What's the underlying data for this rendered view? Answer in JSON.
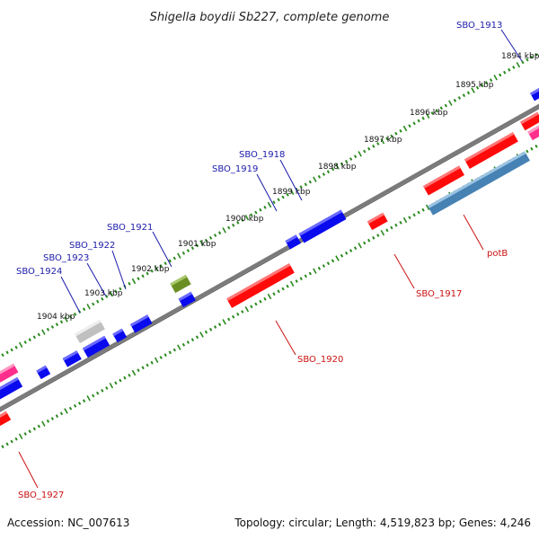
{
  "title": "Shigella boydii Sb227, complete genome",
  "footer": {
    "accession": "Accession: NC_007613",
    "summary": "Topology: circular; Length: 4,519,823 bp; Genes: 4,246"
  },
  "colors": {
    "backbone": "#7a7a7a",
    "tick": "#2a8a1e",
    "label_blue": "#1a1aaa",
    "label_red": "#cc1111",
    "gene_red": "#ff0a0a",
    "gene_blue": "#0a0aee",
    "gene_steel": "#4682b4",
    "gene_pink": "#ff2e8c",
    "gene_olive": "#6b8e23",
    "gene_gray": "#c0c0c0"
  },
  "kbp_ticks": [
    "1894 kbp",
    "1895 kbp",
    "1896 kbp",
    "1897 kbp",
    "1898 kbp",
    "1899 kbp",
    "1900 kbp",
    "1901 kbp",
    "1902 kbp",
    "1903 kbp",
    "1904 kbp"
  ],
  "labels_top": [
    "SBO_1913",
    "SBO_1918",
    "SBO_1919",
    "SBO_1921",
    "SBO_1922",
    "SBO_1923",
    "SBO_1924"
  ],
  "labels_bottom": [
    "potB",
    "SBO_1917",
    "SBO_1920",
    "SBO_1927"
  ],
  "genes": [
    {
      "name": "gene-red-top-right-1",
      "color": "red"
    },
    {
      "name": "gene-red-top-right-2",
      "color": "red"
    },
    {
      "name": "gene-red-potB-1",
      "color": "red"
    },
    {
      "name": "gene-red-potB-2",
      "color": "red"
    },
    {
      "name": "gene-steel",
      "color": "steel"
    },
    {
      "name": "gene-pink-right",
      "color": "pink"
    },
    {
      "name": "gene-blue-right",
      "color": "blue"
    },
    {
      "name": "gene-red-1917",
      "color": "red"
    },
    {
      "name": "gene-blue-1918",
      "color": "blue"
    },
    {
      "name": "gene-blue-1919",
      "color": "blue"
    },
    {
      "name": "gene-olive-1921",
      "color": "olive"
    },
    {
      "name": "gene-blue-1921b",
      "color": "blue"
    },
    {
      "name": "gene-red-1920",
      "color": "red"
    },
    {
      "name": "gene-gray-1924",
      "color": "gray"
    },
    {
      "name": "gene-blue-1923",
      "color": "blue"
    },
    {
      "name": "gene-blue-1922",
      "color": "blue"
    },
    {
      "name": "gene-blue-b1",
      "color": "blue"
    },
    {
      "name": "gene-blue-b2",
      "color": "blue"
    },
    {
      "name": "gene-blue-b3",
      "color": "blue"
    },
    {
      "name": "gene-pink-left",
      "color": "pink"
    },
    {
      "name": "gene-blue-left",
      "color": "blue"
    },
    {
      "name": "gene-red-1927",
      "color": "red"
    }
  ]
}
